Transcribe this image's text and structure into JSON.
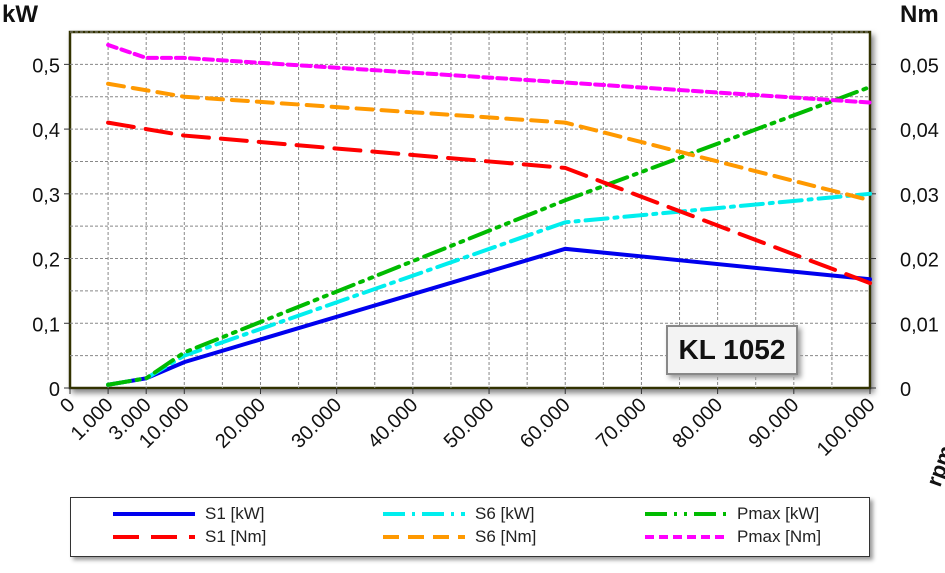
{
  "chart_data": {
    "type": "line",
    "xlabel": "rpm",
    "ylabel": "kW",
    "y2label": "Nm",
    "ylim": [
      0,
      0.55
    ],
    "y2lim": [
      0,
      0.055
    ],
    "yticks": [
      "0",
      "0,1",
      "0,2",
      "0,3",
      "0,4",
      "0,5"
    ],
    "y2ticks": [
      "0",
      "0,01",
      "0,02",
      "0,03",
      "0,04",
      "0,05"
    ],
    "xticks": [
      "0",
      "1.000",
      "3.000",
      "10.000",
      "20.000",
      "30.000",
      "40.000",
      "50.000",
      "60.000",
      "70.000",
      "80.000",
      "90.000",
      "100.000"
    ],
    "xtick_values": [
      0,
      1000,
      3000,
      10000,
      20000,
      30000,
      40000,
      50000,
      60000,
      70000,
      80000,
      90000,
      100000
    ],
    "grid": true,
    "legend_position": "bottom",
    "annotation": "KL 1052",
    "series": [
      {
        "name": "S1 [kW]",
        "axis": "left",
        "color": "#0000ee",
        "dash": "solid",
        "x": [
          1000,
          3000,
          10000,
          60000,
          100000
        ],
        "y": [
          0.005,
          0.015,
          0.04,
          0.215,
          0.168
        ]
      },
      {
        "name": "S6 [kW]",
        "axis": "left",
        "color": "#00eeee",
        "dash": "dashdot",
        "x": [
          1000,
          3000,
          10000,
          60000,
          100000
        ],
        "y": [
          0.005,
          0.015,
          0.05,
          0.256,
          0.3
        ]
      },
      {
        "name": "Pmax [kW]",
        "axis": "left",
        "color": "#00bb00",
        "dash": "dashdotdot",
        "x": [
          1000,
          3000,
          10000,
          60000,
          100000
        ],
        "y": [
          0.005,
          0.015,
          0.055,
          0.29,
          0.465
        ]
      },
      {
        "name": "S1 [Nm]",
        "axis": "right",
        "color": "#ff0000",
        "dash": "longdash",
        "x": [
          1000,
          10000,
          60000,
          100000
        ],
        "y": [
          0.041,
          0.039,
          0.034,
          0.0162
        ]
      },
      {
        "name": "S6 [Nm]",
        "axis": "right",
        "color": "#ff9900",
        "dash": "dash",
        "x": [
          1000,
          10000,
          60000,
          100000
        ],
        "y": [
          0.047,
          0.045,
          0.041,
          0.029
        ]
      },
      {
        "name": "Pmax [Nm]",
        "axis": "right",
        "color": "#ff00ff",
        "dash": "shortdash",
        "x": [
          1000,
          3000,
          10000,
          60000,
          100000
        ],
        "y": [
          0.053,
          0.051,
          0.051,
          0.0472,
          0.0441
        ]
      }
    ]
  }
}
